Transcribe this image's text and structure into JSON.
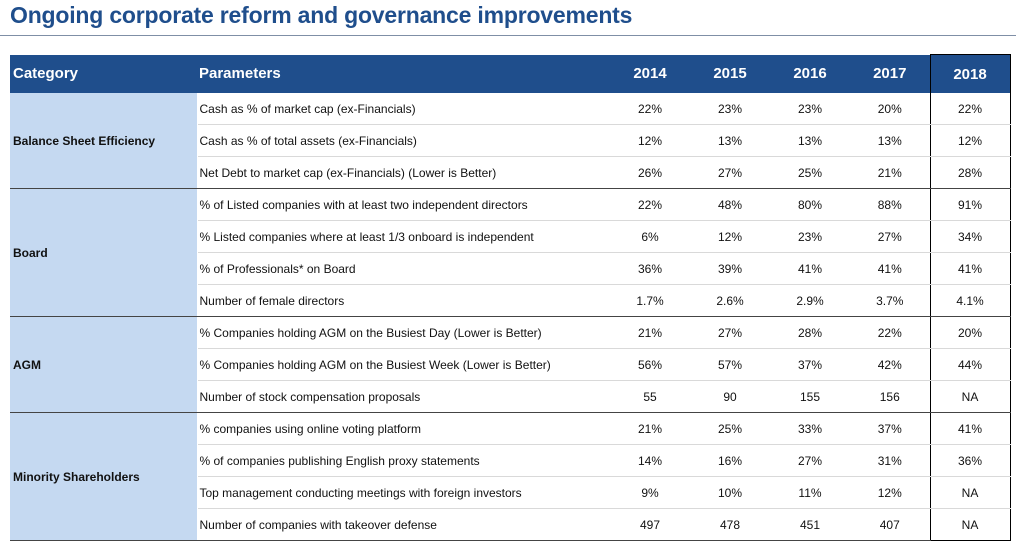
{
  "title": "Ongoing corporate reform and governance improvements",
  "table": {
    "headers": {
      "category": "Category",
      "parameters": "Parameters",
      "years": [
        "2014",
        "2015",
        "2016",
        "2017",
        "2018"
      ]
    },
    "groups": [
      {
        "category": "Balance Sheet Efficiency",
        "rows": [
          {
            "parameter": "Cash as % of market cap (ex-Financials)",
            "values": [
              "22%",
              "23%",
              "23%",
              "20%",
              "22%"
            ]
          },
          {
            "parameter": "Cash as % of total assets (ex-Financials)",
            "values": [
              "12%",
              "13%",
              "13%",
              "13%",
              "12%"
            ]
          },
          {
            "parameter": "Net Debt to market cap (ex-Financials) (Lower is Better)",
            "values": [
              "26%",
              "27%",
              "25%",
              "21%",
              "28%"
            ]
          }
        ]
      },
      {
        "category": "Board",
        "rows": [
          {
            "parameter": "% of Listed companies with at least two independent directors",
            "values": [
              "22%",
              "48%",
              "80%",
              "88%",
              "91%"
            ]
          },
          {
            "parameter": "% Listed companies where at least 1/3 onboard is independent",
            "values": [
              "6%",
              "12%",
              "23%",
              "27%",
              "34%"
            ]
          },
          {
            "parameter": "% of Professionals* on Board",
            "values": [
              "36%",
              "39%",
              "41%",
              "41%",
              "41%"
            ]
          },
          {
            "parameter": "Number of female directors",
            "values": [
              "1.7%",
              "2.6%",
              "2.9%",
              "3.7%",
              "4.1%"
            ]
          }
        ]
      },
      {
        "category": "AGM",
        "rows": [
          {
            "parameter": "% Companies holding AGM on the Busiest Day (Lower is Better)",
            "values": [
              "21%",
              "27%",
              "28%",
              "22%",
              "20%"
            ]
          },
          {
            "parameter": "% Companies holding AGM on the Busiest Week (Lower is Better)",
            "values": [
              "56%",
              "57%",
              "37%",
              "42%",
              "44%"
            ]
          },
          {
            "parameter": "Number of stock compensation proposals",
            "values": [
              "55",
              "90",
              "155",
              "156",
              "NA"
            ]
          }
        ]
      },
      {
        "category": "Minority Shareholders",
        "rows": [
          {
            "parameter": "% companies using online voting platform",
            "values": [
              "21%",
              "25%",
              "33%",
              "37%",
              "41%"
            ]
          },
          {
            "parameter": "% of companies publishing English proxy statements",
            "values": [
              "14%",
              "16%",
              "27%",
              "31%",
              "36%"
            ]
          },
          {
            "parameter": "Top management conducting meetings with foreign investors",
            "values": [
              "9%",
              "10%",
              "11%",
              "12%",
              "NA"
            ]
          },
          {
            "parameter": "Number of companies with takeover defense",
            "values": [
              "497",
              "478",
              "451",
              "407",
              "NA"
            ]
          }
        ]
      }
    ]
  }
}
